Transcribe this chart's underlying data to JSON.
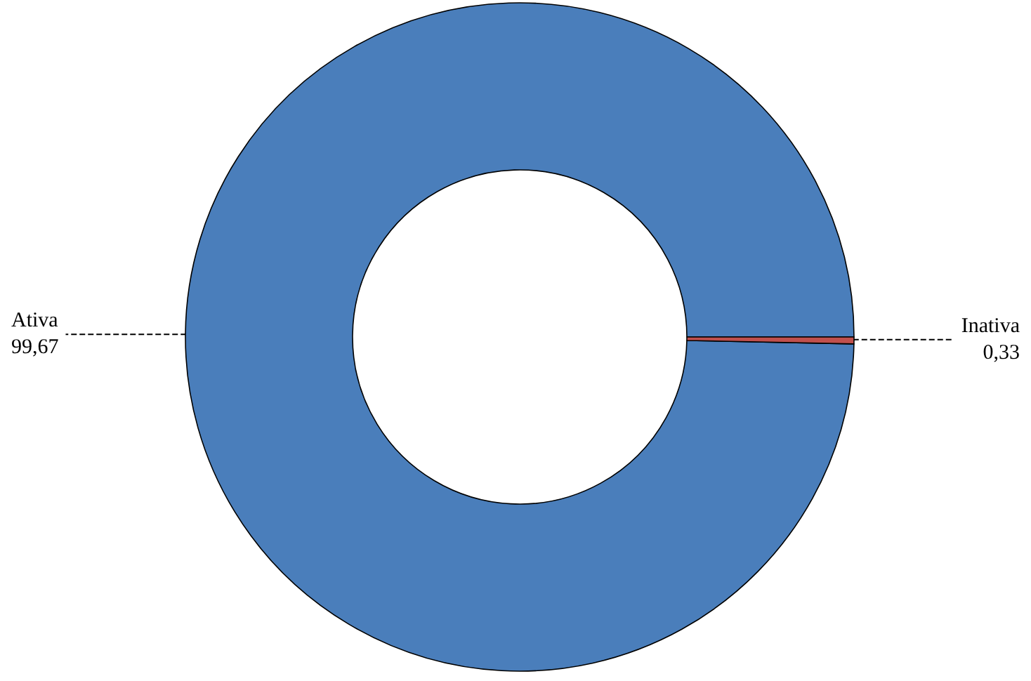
{
  "chart_data": {
    "type": "donut",
    "categories": [
      "Ativa",
      "Inativa"
    ],
    "values": [
      99.67,
      0.33
    ],
    "colors": [
      "#4a7ebb",
      "#c0504d"
    ],
    "value_labels": [
      "99,67",
      "0,33"
    ],
    "legend": false
  }
}
